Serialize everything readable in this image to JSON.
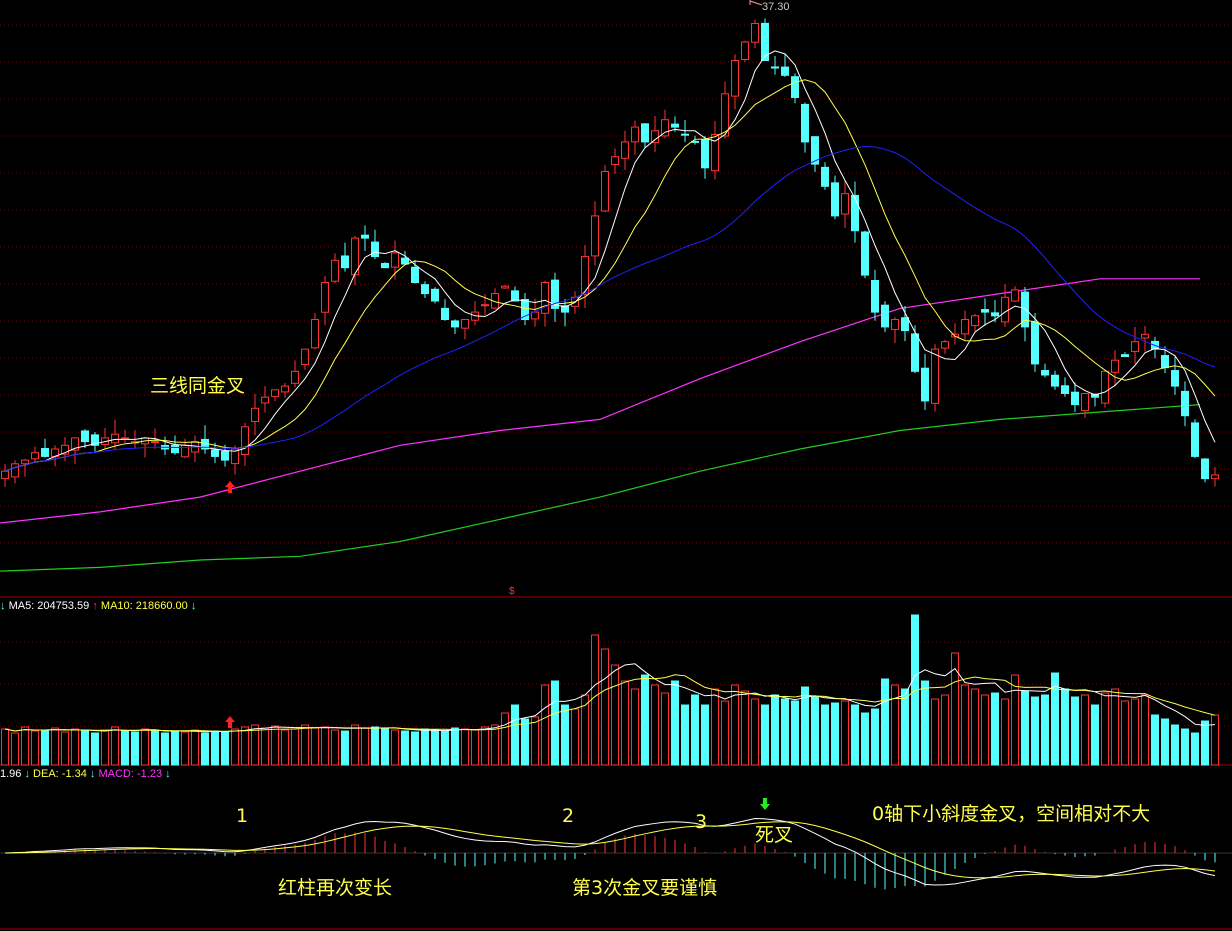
{
  "colors": {
    "up": "#ff3232",
    "down": "#54ffff",
    "ma5": "#ffffff",
    "ma10": "#ffff4c",
    "ma30": "#2020ff",
    "ma_magenta": "#ff33ff",
    "ma_green": "#22cc22",
    "grid": "#7a0000",
    "dif": "#ffffff",
    "dea": "#ffff4c"
  },
  "price_panel": {
    "max_label": "37.30",
    "marker": "$",
    "annotation": "三线同金叉"
  },
  "volume_panel": {
    "ma5_label": "MA5: 204753.59",
    "ma10_label": "MA10: 218660.00"
  },
  "macd_panel": {
    "dif_label": "1.96",
    "dea_label": "DEA: -1.34",
    "macd_label": "MACD: -1.23",
    "annotations": {
      "n1": "1",
      "n2": "2",
      "n3": "3",
      "death_cross": "死叉",
      "below_zero": "0轴下小斜度金叉，空间相对不大",
      "red_longer": "红柱再次变长",
      "third_cross": "第3次金叉要谨慎"
    }
  },
  "chart_data": [
    {
      "type": "candlestick",
      "title": "",
      "ylim_top": 37.3,
      "close": [
        24.7,
        24.9,
        25.0,
        25.2,
        25.1,
        25.3,
        25.4,
        25.6,
        25.5,
        25.4,
        25.6,
        25.7,
        25.6,
        25.5,
        25.6,
        25.5,
        25.3,
        25.2,
        25.4,
        25.5,
        25.3,
        25.1,
        25.0,
        25.3,
        25.9,
        26.4,
        26.7,
        26.9,
        27.0,
        27.4,
        28.0,
        28.8,
        29.8,
        30.4,
        30.2,
        31.0,
        31.0,
        30.5,
        30.2,
        30.6,
        30.3,
        29.8,
        29.5,
        29.3,
        28.8,
        28.6,
        28.8,
        29.0,
        29.2,
        29.5,
        29.7,
        29.3,
        28.8,
        29.0,
        29.8,
        29.1,
        29.0,
        29.4,
        30.5,
        31.6,
        32.8,
        33.2,
        33.6,
        34.0,
        33.6,
        33.9,
        34.2,
        34.0,
        33.8,
        33.6,
        32.9,
        33.8,
        34.9,
        35.8,
        36.3,
        36.8,
        35.8,
        35.6,
        35.4,
        34.8,
        33.6,
        33.0,
        32.4,
        31.6,
        32.2,
        31.2,
        30.0,
        29.0,
        28.6,
        28.8,
        28.5,
        27.4,
        26.6,
        28.0,
        28.2,
        28.4,
        28.8,
        28.9,
        29.0,
        28.9,
        29.4,
        29.6,
        28.6,
        27.6,
        27.3,
        27.0,
        26.8,
        26.5,
        26.8,
        26.7,
        27.4,
        27.7,
        27.8,
        28.2,
        28.4,
        28.0,
        27.5,
        27.0,
        26.2,
        25.1,
        24.5,
        24.6
      ],
      "ma_magenta": [
        23.3,
        23.6,
        24.0,
        24.7,
        25.4,
        25.8,
        26.1,
        27.2,
        28.2,
        29.1,
        29.5,
        29.9,
        29.9
      ],
      "ma_green": [
        22.0,
        22.1,
        22.3,
        22.4,
        22.8,
        23.4,
        24.0,
        24.7,
        25.3,
        25.8,
        26.1,
        26.3,
        26.5
      ]
    },
    {
      "type": "bar",
      "title": "",
      "volume": [
        180,
        160,
        190,
        170,
        175,
        185,
        165,
        180,
        170,
        160,
        175,
        190,
        170,
        165,
        180,
        175,
        160,
        170,
        165,
        175,
        160,
        170,
        165,
        180,
        190,
        200,
        185,
        195,
        175,
        180,
        200,
        185,
        190,
        175,
        170,
        200,
        185,
        190,
        180,
        175,
        170,
        165,
        180,
        175,
        170,
        185,
        180,
        175,
        190,
        200,
        260,
        300,
        230,
        240,
        400,
        420,
        300,
        280,
        350,
        650,
        580,
        500,
        420,
        380,
        450,
        400,
        360,
        420,
        300,
        350,
        300,
        380,
        320,
        400,
        370,
        330,
        300,
        350,
        330,
        320,
        390,
        340,
        300,
        310,
        320,
        300,
        260,
        280,
        430,
        400,
        380,
        750,
        420,
        330,
        350,
        560,
        400,
        380,
        350,
        360,
        330,
        450,
        370,
        340,
        350,
        460,
        380,
        340,
        350,
        300,
        360,
        380,
        320,
        330,
        350,
        250,
        230,
        200,
        180,
        160,
        220,
        250
      ]
    }
  ]
}
